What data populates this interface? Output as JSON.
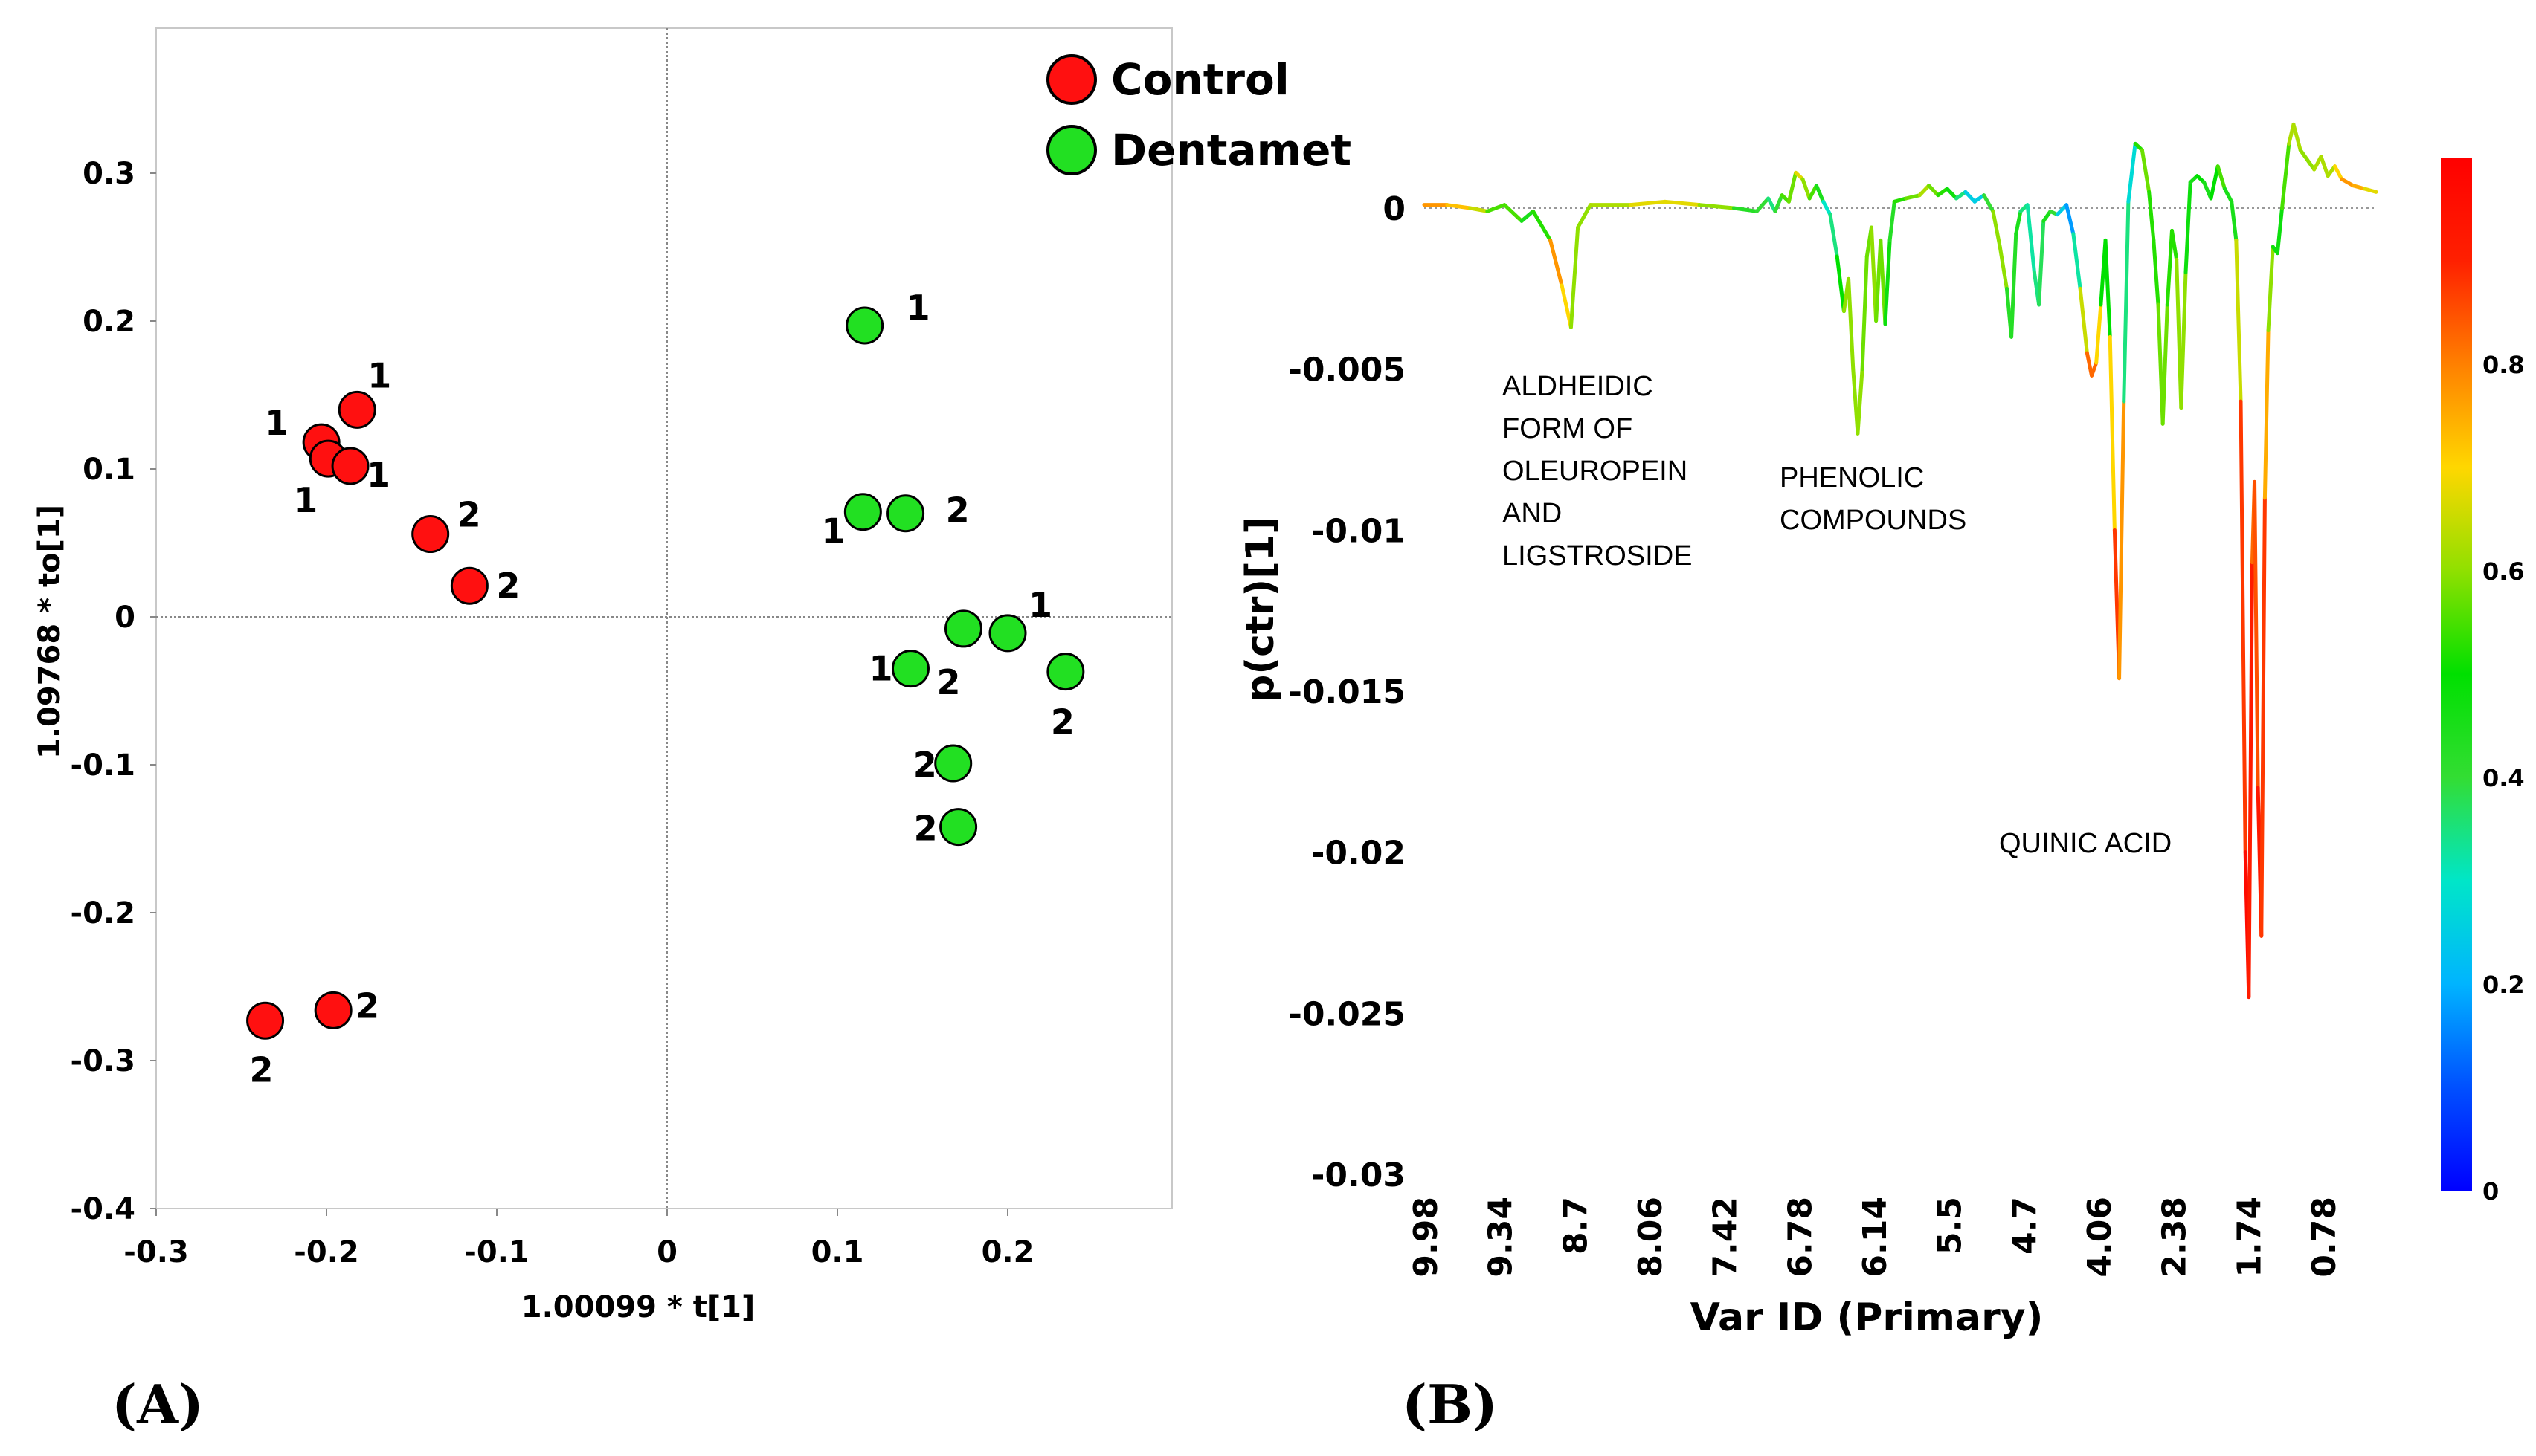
{
  "chart_data": [
    {
      "type": "scatter",
      "panel_label": "(A)",
      "xlabel": "1.00099 * t[1]",
      "ylabel": "1.09768 * to[1]",
      "xlim": [
        -0.3,
        0.3
      ],
      "ylim": [
        -0.4,
        0.4
      ],
      "xticks": [
        "-0.3",
        "-0.2",
        "-0.1",
        "0",
        "0.1",
        "0.2"
      ],
      "yticks": [
        "0.3",
        "0.2",
        "0.1",
        "0",
        "-0.1",
        "-0.2",
        "-0.3",
        "-0.4"
      ],
      "legend_position": "top-right",
      "series": [
        {
          "name": "Control",
          "color": "#ff1010",
          "points": [
            {
              "x": -0.182,
              "y": 0.14,
              "label": "1"
            },
            {
              "x": -0.203,
              "y": 0.118,
              "label": "1"
            },
            {
              "x": -0.199,
              "y": 0.107,
              "label": "1"
            },
            {
              "x": -0.186,
              "y": 0.102,
              "label": "1"
            },
            {
              "x": -0.139,
              "y": 0.056,
              "label": "2"
            },
            {
              "x": -0.116,
              "y": 0.021,
              "label": "2"
            },
            {
              "x": -0.236,
              "y": -0.273,
              "label": "2"
            },
            {
              "x": -0.196,
              "y": -0.266,
              "label": "2"
            }
          ]
        },
        {
          "name": "Dentamet",
          "color": "#22e022",
          "points": [
            {
              "x": 0.116,
              "y": 0.197,
              "label": "1"
            },
            {
              "x": 0.115,
              "y": 0.071,
              "label": "1"
            },
            {
              "x": 0.14,
              "y": 0.07,
              "label": "2"
            },
            {
              "x": 0.174,
              "y": -0.008,
              "label": "2"
            },
            {
              "x": 0.2,
              "y": -0.011,
              "label": "1"
            },
            {
              "x": 0.143,
              "y": -0.035,
              "label": "1"
            },
            {
              "x": 0.234,
              "y": -0.037,
              "label": "2"
            },
            {
              "x": 0.168,
              "y": -0.099,
              "label": "2"
            },
            {
              "x": 0.171,
              "y": -0.142,
              "label": "2"
            }
          ]
        }
      ]
    },
    {
      "type": "line",
      "panel_label": "(B)",
      "xlabel": "Var ID (Primary)",
      "ylabel": "p(ctr)[1]",
      "ylim": [
        -0.03,
        0.001
      ],
      "xticks": [
        "9.98",
        "9.34",
        "8.7",
        "8.06",
        "7.42",
        "6.78",
        "6.14",
        "5.5",
        "4.7",
        "4.06",
        "2.38",
        "1.74",
        "0.78"
      ],
      "yticks": [
        "0",
        "-0.005",
        "-0.01",
        "-0.015",
        "-0.02",
        "-0.025",
        "-0.03"
      ],
      "colorbar": {
        "min": 0,
        "max": 1,
        "ticks": [
          "0",
          "0.2",
          "0.4",
          "0.6",
          "0.8"
        ],
        "colors": [
          "#0000ff",
          "#0050ff",
          "#00b4ff",
          "#00e6c8",
          "#33dd33",
          "#00e000",
          "#90e000",
          "#ffd700",
          "#ff8000",
          "#ff2000",
          "#ff0000"
        ]
      },
      "annotations": [
        {
          "lines": [
            "ALDHEIDIC",
            "FORM OF",
            "OLEUROPEIN",
            "AND",
            "LIGSTROSIDE"
          ]
        },
        {
          "lines": [
            "PHENOLIC",
            "COMPOUNDS"
          ]
        },
        {
          "lines": [
            "QUINIC ACID"
          ]
        }
      ],
      "series_points": [
        {
          "i": 0,
          "y": 0.0001,
          "c": 0.8
        },
        {
          "i": 20,
          "y": 0.0001,
          "c": 0.75
        },
        {
          "i": 40,
          "y": 0.0,
          "c": 0.7
        },
        {
          "i": 55,
          "y": -0.0001,
          "c": 0.6
        },
        {
          "i": 70,
          "y": 0.0001,
          "c": 0.5
        },
        {
          "i": 85,
          "y": -0.0004,
          "c": 0.6
        },
        {
          "i": 95,
          "y": -0.0001,
          "c": 0.3
        },
        {
          "i": 110,
          "y": -0.001,
          "c": 0.75
        },
        {
          "i": 120,
          "y": -0.0024,
          "c": 0.8
        },
        {
          "i": 128,
          "y": -0.0037,
          "c": 0.6
        },
        {
          "i": 134,
          "y": -0.0006,
          "c": 0.6
        },
        {
          "i": 145,
          "y": 0.0001,
          "c": 0.6
        },
        {
          "i": 180,
          "y": 0.0001,
          "c": 0.65
        },
        {
          "i": 210,
          "y": 0.0002,
          "c": 0.7
        },
        {
          "i": 240,
          "y": 0.0001,
          "c": 0.65
        },
        {
          "i": 270,
          "y": 0.0,
          "c": 0.55
        },
        {
          "i": 290,
          "y": -0.0001,
          "c": 0.3
        },
        {
          "i": 300,
          "y": 0.0003,
          "c": 0.5
        },
        {
          "i": 306,
          "y": -0.0001,
          "c": 0.2
        },
        {
          "i": 312,
          "y": 0.0004,
          "c": 0.6
        },
        {
          "i": 318,
          "y": 0.0002,
          "c": 0.5
        },
        {
          "i": 324,
          "y": 0.0011,
          "c": 0.65
        },
        {
          "i": 330,
          "y": 0.0009,
          "c": 0.7
        },
        {
          "i": 336,
          "y": 0.0003,
          "c": 0.5
        },
        {
          "i": 342,
          "y": 0.0007,
          "c": 0.6
        },
        {
          "i": 348,
          "y": 0.0002,
          "c": 0.3
        },
        {
          "i": 354,
          "y": -0.0002,
          "c": 0.3
        },
        {
          "i": 360,
          "y": -0.0015,
          "c": 0.4
        },
        {
          "i": 366,
          "y": -0.0032,
          "c": 0.6
        },
        {
          "i": 370,
          "y": -0.0022,
          "c": 0.6
        },
        {
          "i": 374,
          "y": -0.005,
          "c": 0.6
        },
        {
          "i": 378,
          "y": -0.007,
          "c": 0.6
        },
        {
          "i": 382,
          "y": -0.005,
          "c": 0.6
        },
        {
          "i": 386,
          "y": -0.0015,
          "c": 0.55
        },
        {
          "i": 390,
          "y": -0.0006,
          "c": 0.6
        },
        {
          "i": 394,
          "y": -0.0035,
          "c": 0.6
        },
        {
          "i": 398,
          "y": -0.001,
          "c": 0.55
        },
        {
          "i": 402,
          "y": -0.0036,
          "c": 0.6
        },
        {
          "i": 406,
          "y": -0.001,
          "c": 0.35
        },
        {
          "i": 410,
          "y": 0.0002,
          "c": 0.5
        },
        {
          "i": 420,
          "y": 0.0003,
          "c": 0.55
        },
        {
          "i": 432,
          "y": 0.0004,
          "c": 0.6
        },
        {
          "i": 440,
          "y": 0.0007,
          "c": 0.65
        },
        {
          "i": 448,
          "y": 0.0004,
          "c": 0.5
        },
        {
          "i": 456,
          "y": 0.0006,
          "c": 0.55
        },
        {
          "i": 464,
          "y": 0.0003,
          "c": 0.4
        },
        {
          "i": 472,
          "y": 0.0005,
          "c": 0.3
        },
        {
          "i": 480,
          "y": 0.0002,
          "c": 0.2
        },
        {
          "i": 488,
          "y": 0.0004,
          "c": 0.3
        },
        {
          "i": 496,
          "y": -0.0001,
          "c": 0.5
        },
        {
          "i": 502,
          "y": -0.0012,
          "c": 0.7
        },
        {
          "i": 508,
          "y": -0.0025,
          "c": 0.5
        },
        {
          "i": 512,
          "y": -0.004,
          "c": 0.35
        },
        {
          "i": 516,
          "y": -0.0008,
          "c": 0.5
        },
        {
          "i": 520,
          "y": -0.0001,
          "c": 0.4
        },
        {
          "i": 526,
          "y": 0.0001,
          "c": 0.3
        },
        {
          "i": 532,
          "y": -0.002,
          "c": 0.35
        },
        {
          "i": 536,
          "y": -0.003,
          "c": 0.35
        },
        {
          "i": 540,
          "y": -0.0004,
          "c": 0.4
        },
        {
          "i": 546,
          "y": -0.0001,
          "c": 0.5
        },
        {
          "i": 552,
          "y": -0.0002,
          "c": 0.3
        },
        {
          "i": 560,
          "y": 0.0001,
          "c": 0.2
        },
        {
          "i": 566,
          "y": -0.0008,
          "c": 0.15
        },
        {
          "i": 572,
          "y": -0.0025,
          "c": 0.5
        },
        {
          "i": 578,
          "y": -0.0045,
          "c": 0.8
        },
        {
          "i": 582,
          "y": -0.0052,
          "c": 0.85
        },
        {
          "i": 586,
          "y": -0.0048,
          "c": 0.8
        },
        {
          "i": 590,
          "y": -0.003,
          "c": 0.6
        },
        {
          "i": 594,
          "y": -0.001,
          "c": 0.4
        },
        {
          "i": 598,
          "y": -0.004,
          "c": 0.6
        },
        {
          "i": 602,
          "y": -0.01,
          "c": 0.8
        },
        {
          "i": 606,
          "y": -0.0146,
          "c": 0.95
        },
        {
          "i": 610,
          "y": -0.006,
          "c": 0.6
        },
        {
          "i": 614,
          "y": 0.0002,
          "c": 0.1
        },
        {
          "i": 620,
          "y": 0.002,
          "c": 0.45
        },
        {
          "i": 626,
          "y": 0.0018,
          "c": 0.6
        },
        {
          "i": 632,
          "y": 0.0005,
          "c": 0.55
        },
        {
          "i": 636,
          "y": -0.001,
          "c": 0.5
        },
        {
          "i": 640,
          "y": -0.003,
          "c": 0.55
        },
        {
          "i": 644,
          "y": -0.0067,
          "c": 0.6
        },
        {
          "i": 648,
          "y": -0.003,
          "c": 0.55
        },
        {
          "i": 652,
          "y": -0.0007,
          "c": 0.5
        },
        {
          "i": 656,
          "y": -0.0016,
          "c": 0.55
        },
        {
          "i": 660,
          "y": -0.0062,
          "c": 0.65
        },
        {
          "i": 664,
          "y": -0.002,
          "c": 0.55
        },
        {
          "i": 668,
          "y": 0.0008,
          "c": 0.4
        },
        {
          "i": 674,
          "y": 0.001,
          "c": 0.5
        },
        {
          "i": 680,
          "y": 0.0008,
          "c": 0.5
        },
        {
          "i": 686,
          "y": 0.0003,
          "c": 0.4
        },
        {
          "i": 692,
          "y": 0.0013,
          "c": 0.6
        },
        {
          "i": 698,
          "y": 0.0006,
          "c": 0.5
        },
        {
          "i": 704,
          "y": 0.0002,
          "c": 0.4
        },
        {
          "i": 708,
          "y": -0.001,
          "c": 0.5
        },
        {
          "i": 712,
          "y": -0.006,
          "c": 0.8
        },
        {
          "i": 716,
          "y": -0.02,
          "c": 0.95
        },
        {
          "i": 719,
          "y": -0.0245,
          "c": 0.98
        },
        {
          "i": 722,
          "y": -0.011,
          "c": 0.85
        },
        {
          "i": 724,
          "y": -0.0085,
          "c": 0.8
        },
        {
          "i": 727,
          "y": -0.018,
          "c": 0.9
        },
        {
          "i": 730,
          "y": -0.0226,
          "c": 0.95
        },
        {
          "i": 733,
          "y": -0.009,
          "c": 0.8
        },
        {
          "i": 736,
          "y": -0.0038,
          "c": 0.7
        },
        {
          "i": 740,
          "y": -0.0012,
          "c": 0.5
        },
        {
          "i": 744,
          "y": -0.0014,
          "c": 0.45
        },
        {
          "i": 748,
          "y": 0.0,
          "c": 0.5
        },
        {
          "i": 754,
          "y": 0.002,
          "c": 0.6
        },
        {
          "i": 758,
          "y": 0.0026,
          "c": 0.65
        },
        {
          "i": 764,
          "y": 0.0018,
          "c": 0.6
        },
        {
          "i": 770,
          "y": 0.0015,
          "c": 0.6
        },
        {
          "i": 776,
          "y": 0.0012,
          "c": 0.6
        },
        {
          "i": 782,
          "y": 0.0016,
          "c": 0.65
        },
        {
          "i": 788,
          "y": 0.001,
          "c": 0.6
        },
        {
          "i": 794,
          "y": 0.0013,
          "c": 0.65
        },
        {
          "i": 800,
          "y": 0.0009,
          "c": 0.75
        },
        {
          "i": 810,
          "y": 0.0007,
          "c": 0.8
        },
        {
          "i": 820,
          "y": 0.0006,
          "c": 0.7
        },
        {
          "i": 830,
          "y": 0.0005,
          "c": 0.65
        }
      ]
    }
  ]
}
